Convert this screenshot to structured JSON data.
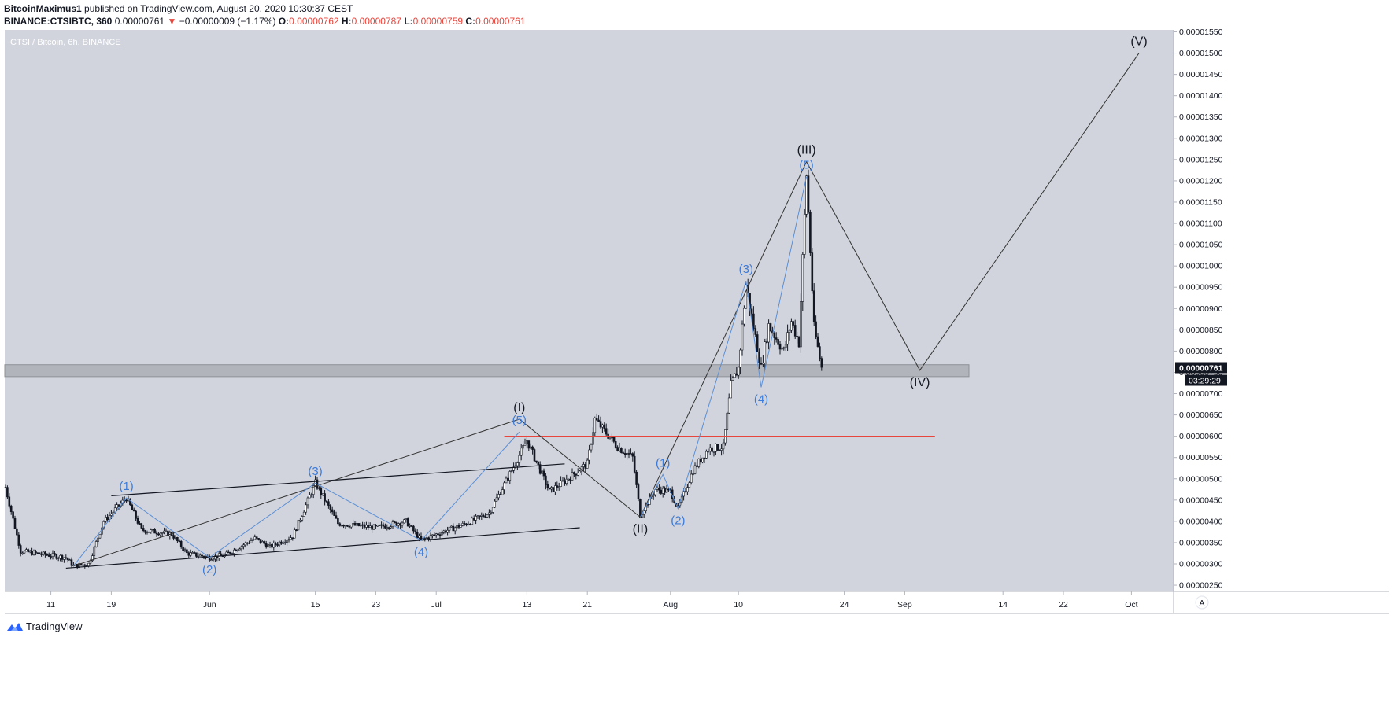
{
  "header": {
    "author": "BitcoinMaximus1",
    "published_text": "published on TradingView.com, August 20, 2020 10:30:37 CEST",
    "symbol": "BINANCE:CTSIBTC, 360",
    "last_price": "0.00000761",
    "change": "−0.00000009 (−1.17%)",
    "o_label": "O:",
    "o_value": "0.00000762",
    "h_label": "H:",
    "h_value": "0.00000787",
    "l_label": "L:",
    "l_value": "0.00000759",
    "c_label": "C:",
    "c_value": "0.00000761"
  },
  "chart_title": "CTSI / Bitcoin, 6h, BINANCE",
  "footer": {
    "brand": "TradingView"
  },
  "colors": {
    "background": "#d1d4dc",
    "candle": "#131722",
    "wave_major": "#333333",
    "wave_minor": "#5b8fd6",
    "support_zone": "#a7aab0",
    "red_line": "#e8453c",
    "price_tag": "#131722"
  },
  "chart_data": {
    "type": "candlestick",
    "y_axis": {
      "ticks": [
        "0.00001550",
        "0.00001500",
        "0.00001450",
        "0.00001400",
        "0.00001350",
        "0.00001300",
        "0.00001250",
        "0.00001200",
        "0.00001150",
        "0.00001100",
        "0.00001050",
        "0.00001000",
        "0.00000950",
        "0.00000900",
        "0.00000850",
        "0.00000800",
        "0.00000750",
        "0.00000700",
        "0.00000650",
        "0.00000600",
        "0.00000550",
        "0.00000500",
        "0.00000450",
        "0.00000400",
        "0.00000350",
        "0.00000300",
        "0.00000250"
      ],
      "price_tag": "0.00000761",
      "countdown": "03:29:29"
    },
    "x_axis": {
      "start_date": "2020-05-05",
      "ticks": [
        {
          "label": "11",
          "date": "2020-05-11"
        },
        {
          "label": "19",
          "date": "2020-05-19"
        },
        {
          "label": "Jun",
          "date": "2020-06-01"
        },
        {
          "label": "15",
          "date": "2020-06-15"
        },
        {
          "label": "23",
          "date": "2020-06-23"
        },
        {
          "label": "Jul",
          "date": "2020-07-01"
        },
        {
          "label": "13",
          "date": "2020-07-13"
        },
        {
          "label": "21",
          "date": "2020-07-21"
        },
        {
          "label": "Aug",
          "date": "2020-08-01"
        },
        {
          "label": "10",
          "date": "2020-08-10"
        },
        {
          "label": "24",
          "date": "2020-08-24"
        },
        {
          "label": "Sep",
          "date": "2020-09-01"
        },
        {
          "label": "14",
          "date": "2020-09-14"
        },
        {
          "label": "22",
          "date": "2020-09-22"
        },
        {
          "label": "Oct",
          "date": "2020-10-01"
        }
      ]
    },
    "price_path": [
      [
        "2020-05-05",
        480
      ],
      [
        "2020-05-07",
        330
      ],
      [
        "2020-05-13",
        315
      ],
      [
        "2020-05-14",
        295
      ],
      [
        "2020-05-16",
        300
      ],
      [
        "2020-05-18",
        400
      ],
      [
        "2020-05-21",
        455
      ],
      [
        "2020-05-23",
        380
      ],
      [
        "2020-05-27",
        370
      ],
      [
        "2020-05-29",
        325
      ],
      [
        "2020-06-01",
        315
      ],
      [
        "2020-06-03",
        320
      ],
      [
        "2020-06-07",
        360
      ],
      [
        "2020-06-09",
        340
      ],
      [
        "2020-06-12",
        365
      ],
      [
        "2020-06-15",
        490
      ],
      [
        "2020-06-18",
        395
      ],
      [
        "2020-06-23",
        385
      ],
      [
        "2020-06-27",
        400
      ],
      [
        "2020-06-29",
        355
      ],
      [
        "2020-07-01",
        370
      ],
      [
        "2020-07-05",
        395
      ],
      [
        "2020-07-08",
        420
      ],
      [
        "2020-07-11",
        520
      ],
      [
        "2020-07-13",
        590
      ],
      [
        "2020-07-16",
        470
      ],
      [
        "2020-07-18",
        495
      ],
      [
        "2020-07-21",
        535
      ],
      [
        "2020-07-22",
        640
      ],
      [
        "2020-07-25",
        575
      ],
      [
        "2020-07-27",
        550
      ],
      [
        "2020-07-28",
        415
      ],
      [
        "2020-07-30",
        475
      ],
      [
        "2020-08-01",
        470
      ],
      [
        "2020-08-02",
        430
      ],
      [
        "2020-08-04",
        520
      ],
      [
        "2020-08-06",
        570
      ],
      [
        "2020-08-08",
        575
      ],
      [
        "2020-08-09",
        720
      ],
      [
        "2020-08-10",
        760
      ],
      [
        "2020-08-11",
        955
      ],
      [
        "2020-08-13",
        760
      ],
      [
        "2020-08-14",
        860
      ],
      [
        "2020-08-16",
        800
      ],
      [
        "2020-08-17",
        870
      ],
      [
        "2020-08-18",
        820
      ],
      [
        "2020-08-19",
        1215
      ],
      [
        "2020-08-20",
        855
      ],
      [
        "2020-08-21",
        761
      ]
    ],
    "wave_major": [
      {
        "label": "(I)",
        "date": "2020-07-12",
        "price": 640
      },
      {
        "label": "(II)",
        "date": "2020-07-28",
        "price": 410
      },
      {
        "label": "(III)",
        "date": "2020-08-19",
        "price": 1245
      },
      {
        "label": "(IV)",
        "date": "2020-09-03",
        "price": 755
      },
      {
        "label": "(V)",
        "date": "2020-10-02",
        "price": 1500
      }
    ],
    "wave_major_start": {
      "date": "2020-05-14",
      "price": 295
    },
    "wave_minor_1": [
      {
        "label": "(1)",
        "date": "2020-05-21",
        "price": 455
      },
      {
        "label": "(2)",
        "date": "2020-06-01",
        "price": 315
      },
      {
        "label": "(3)",
        "date": "2020-06-15",
        "price": 490
      },
      {
        "label": "(4)",
        "date": "2020-06-29",
        "price": 355
      },
      {
        "label": "(5)",
        "date": "2020-07-12",
        "price": 610
      }
    ],
    "wave_minor_2": [
      {
        "label": "(1)",
        "date": "2020-07-31",
        "price": 510
      },
      {
        "label": "(2)",
        "date": "2020-08-02",
        "price": 430
      },
      {
        "label": "(3)",
        "date": "2020-08-11",
        "price": 965
      },
      {
        "label": "(4)",
        "date": "2020-08-13",
        "price": 715
      },
      {
        "label": "(5)",
        "date": "2020-08-19",
        "price": 1210
      }
    ],
    "channel_upper": [
      [
        "2020-05-19",
        460
      ],
      [
        "2020-07-18",
        535
      ]
    ],
    "channel_lower": [
      [
        "2020-05-13",
        290
      ],
      [
        "2020-07-20",
        385
      ]
    ],
    "red_line": {
      "from": "2020-07-10",
      "to": "2020-09-05",
      "price": 600
    },
    "support_zone": {
      "from_price": 740,
      "to_price": 768
    }
  }
}
